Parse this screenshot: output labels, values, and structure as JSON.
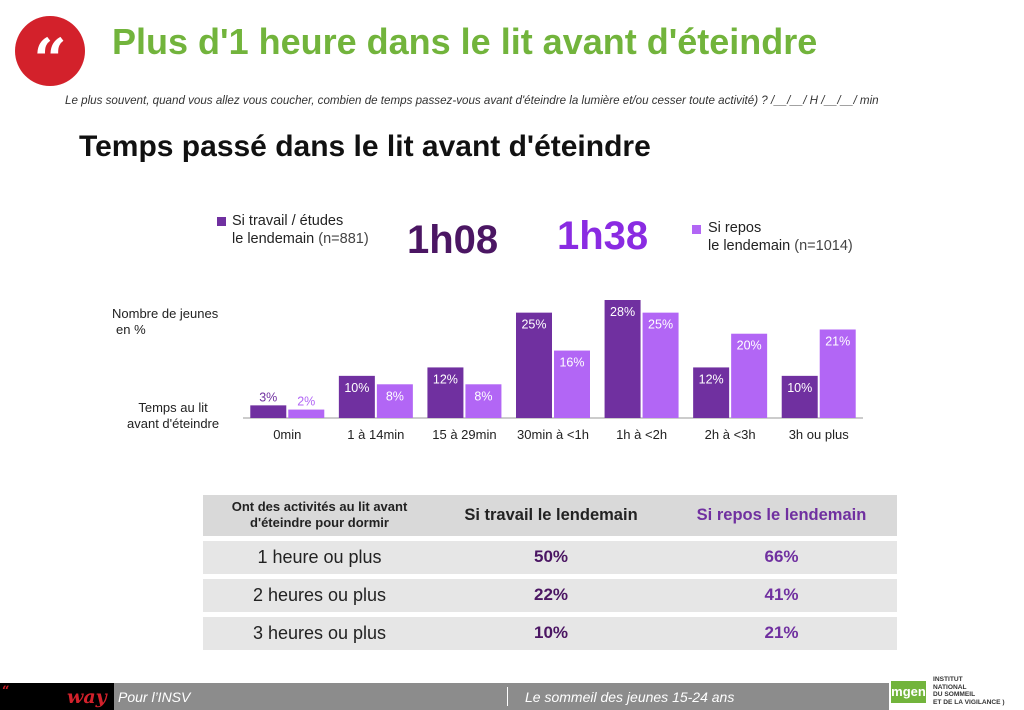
{
  "header": {
    "quote_glyph": "“",
    "title": "Plus d'1 heure dans le lit avant d'éteindre",
    "question": "Le plus souvent, quand vous allez vous coucher, combien de temps passez-vous avant d'éteindre la lumière et/ou cesser toute activité) ?   /__/__/ H /__/__/ min"
  },
  "chart_heading": "Temps passé dans le lit avant d'éteindre",
  "legend": {
    "work": {
      "label_line1": "Si travail / études",
      "label_line2": "le lendemain",
      "n": "(n=881)",
      "value": "1h08"
    },
    "rest": {
      "label_line1": "Si repos",
      "label_line2": "le lendemain",
      "n": "(n=1014)",
      "value": "1h38"
    }
  },
  "axis_notes": {
    "y_line1": "Nombre de jeunes",
    "y_line2": "en %",
    "x_line1": "Temps au lit",
    "x_line2": "avant d'éteindre"
  },
  "colors": {
    "title_green": "#72b43c",
    "quote_red": "#d3212b",
    "work_purple": "#7030a0",
    "work_dark": "#4b1663",
    "rest_purple": "#b266f5",
    "rest_value": "#8a2be2"
  },
  "chart_data": {
    "type": "bar",
    "categories": [
      "0min",
      "1 à 14min",
      "15 à 29min",
      "30min à <1h",
      "1h à <2h",
      "2h à <3h",
      "3h ou plus"
    ],
    "series": [
      {
        "name": "Si travail / études le lendemain (n=881)",
        "values": [
          3,
          10,
          12,
          25,
          28,
          12,
          10
        ],
        "labels": [
          "3%",
          "10%",
          "12%",
          "25%",
          "28%",
          "12%",
          "10%"
        ]
      },
      {
        "name": "Si repos le lendemain (n=1014)",
        "values": [
          2,
          8,
          8,
          16,
          25,
          20,
          21
        ],
        "labels": [
          "2%",
          "8%",
          "8%",
          "16%",
          "25%",
          "20%",
          "21%"
        ]
      }
    ],
    "ylim": [
      0,
      28
    ],
    "ylabel": "Nombre de jeunes en %",
    "xlabel": "Temps au lit avant d'éteindre",
    "grid": false
  },
  "table": {
    "headers": [
      "Ont des activités au lit avant d'éteindre pour dormir",
      "Si travail le lendemain",
      "Si repos le lendemain"
    ],
    "rows": [
      [
        "1 heure ou plus",
        "50%",
        "66%"
      ],
      [
        "2 heures ou plus",
        "22%",
        "41%"
      ],
      [
        "3 heures ou plus",
        "10%",
        "21%"
      ]
    ]
  },
  "footer": {
    "logo_word": "way",
    "left": "Pour l’INSV",
    "center": "Le sommeil des jeunes 15-24 ans",
    "partner_mark": "mgen",
    "partner_text": "INSTITUT\nNATIONAL\nDU SOMMEIL\nET DE LA VIGILANCE )"
  }
}
